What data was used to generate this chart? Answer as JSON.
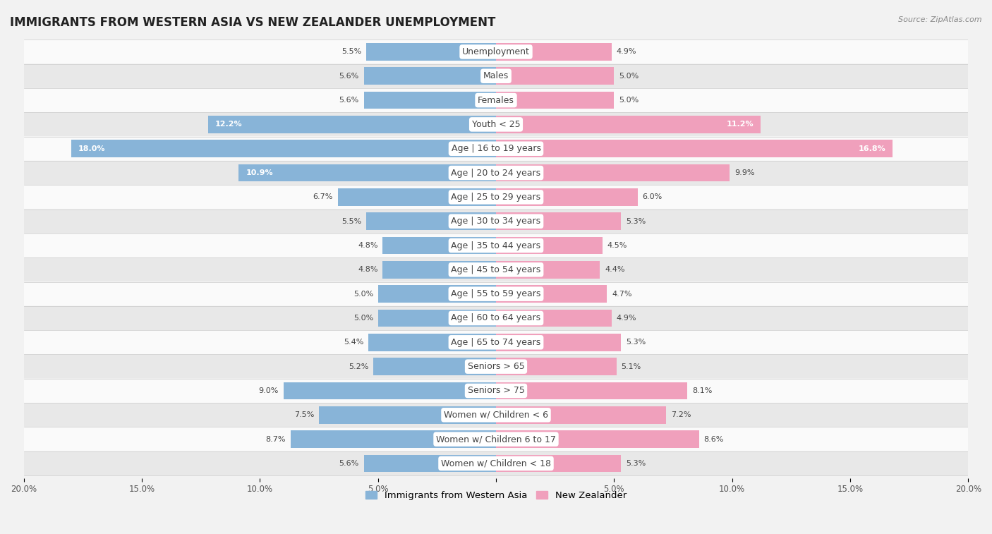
{
  "title": "IMMIGRANTS FROM WESTERN ASIA VS NEW ZEALANDER UNEMPLOYMENT",
  "source": "Source: ZipAtlas.com",
  "categories": [
    "Unemployment",
    "Males",
    "Females",
    "Youth < 25",
    "Age | 16 to 19 years",
    "Age | 20 to 24 years",
    "Age | 25 to 29 years",
    "Age | 30 to 34 years",
    "Age | 35 to 44 years",
    "Age | 45 to 54 years",
    "Age | 55 to 59 years",
    "Age | 60 to 64 years",
    "Age | 65 to 74 years",
    "Seniors > 65",
    "Seniors > 75",
    "Women w/ Children < 6",
    "Women w/ Children 6 to 17",
    "Women w/ Children < 18"
  ],
  "left_values": [
    5.5,
    5.6,
    5.6,
    12.2,
    18.0,
    10.9,
    6.7,
    5.5,
    4.8,
    4.8,
    5.0,
    5.0,
    5.4,
    5.2,
    9.0,
    7.5,
    8.7,
    5.6
  ],
  "right_values": [
    4.9,
    5.0,
    5.0,
    11.2,
    16.8,
    9.9,
    6.0,
    5.3,
    4.5,
    4.4,
    4.7,
    4.9,
    5.3,
    5.1,
    8.1,
    7.2,
    8.6,
    5.3
  ],
  "left_color": "#88b4d8",
  "right_color": "#f0a0bc",
  "axis_max": 20.0,
  "background_color": "#f2f2f2",
  "row_bg_light": "#fafafa",
  "row_bg_dark": "#e8e8e8",
  "left_label": "Immigrants from Western Asia",
  "right_label": "New Zealander",
  "title_fontsize": 12,
  "label_fontsize": 9,
  "value_fontsize": 8,
  "source_fontsize": 8
}
